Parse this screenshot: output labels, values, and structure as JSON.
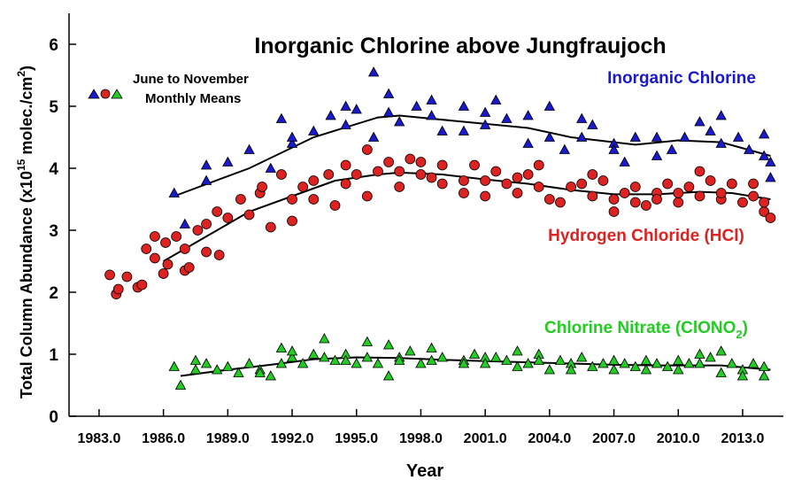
{
  "chart_data": {
    "type": "scatter",
    "title": "Inorganic Chlorine above Jungfraujoch",
    "xlabel": "Year",
    "ylabel_parts": [
      "Total Column Abundance (x10",
      "15",
      " molec./cm",
      "2",
      ")"
    ],
    "annotations": [
      "June to November",
      "Monthly Means"
    ],
    "xlim": [
      1981.6,
      2014.9
    ],
    "ylim": [
      0,
      6.5
    ],
    "xticks": [
      {
        "value": 1983,
        "label": "1983.0"
      },
      {
        "value": 1986,
        "label": "1986.0"
      },
      {
        "value": 1989,
        "label": "1989.0"
      },
      {
        "value": 1992,
        "label": "1992.0"
      },
      {
        "value": 1995,
        "label": "1995.0"
      },
      {
        "value": 1998,
        "label": "1998.0"
      },
      {
        "value": 2001,
        "label": "2001.0"
      },
      {
        "value": 2004,
        "label": "2004.0"
      },
      {
        "value": 2007,
        "label": "2007.0"
      },
      {
        "value": 2010,
        "label": "2010.0"
      },
      {
        "value": 2013,
        "label": "2013.0"
      }
    ],
    "yticks": [
      0,
      1,
      2,
      3,
      4,
      5,
      6
    ],
    "grid": false,
    "series": [
      {
        "name": "Inorganic Chlorine",
        "color": "#1a1acc",
        "marker": "triangle",
        "x": [
          1986.5,
          1987,
          1988,
          1988,
          1989,
          1990,
          1991,
          1991.5,
          1992,
          1992,
          1993,
          1993.8,
          1994.5,
          1994.5,
          1995,
          1995.8,
          1995.8,
          1996.5,
          1996.5,
          1997,
          1997.8,
          1998.5,
          1998.5,
          1999,
          2000,
          2000,
          2001,
          2001,
          2001.5,
          2002,
          2003,
          2003,
          2004,
          2004,
          2004.7,
          2005.5,
          2005.5,
          2006,
          2007,
          2007,
          2007.5,
          2008,
          2009,
          2009,
          2009.7,
          2010.3,
          2011,
          2011.5,
          2012,
          2012,
          2012.8,
          2013.3,
          2014,
          2014,
          2014.3,
          2014.3
        ],
        "values": [
          3.6,
          3.1,
          3.8,
          4.05,
          4.1,
          4.3,
          4.0,
          4.8,
          4.4,
          4.5,
          4.6,
          4.85,
          5.0,
          4.7,
          4.95,
          5.55,
          4.5,
          5.2,
          4.9,
          4.75,
          5.0,
          4.85,
          5.1,
          4.6,
          5.0,
          4.6,
          4.9,
          4.7,
          5.1,
          4.8,
          4.85,
          4.4,
          5.0,
          4.5,
          4.3,
          4.8,
          4.5,
          4.7,
          4.4,
          4.3,
          4.1,
          4.5,
          4.5,
          4.2,
          4.3,
          4.5,
          4.75,
          4.6,
          4.85,
          4.4,
          4.5,
          4.3,
          4.55,
          4.2,
          4.1,
          3.85
        ],
        "trend": {
          "color": "#000000",
          "x": [
            1986.5,
            1990,
            1993,
            1996,
            1997,
            2000,
            2003,
            2005,
            2008,
            2010,
            2012,
            2014.3
          ],
          "values": [
            3.55,
            4.0,
            4.5,
            4.82,
            4.85,
            4.75,
            4.65,
            4.5,
            4.38,
            4.45,
            4.42,
            4.2
          ]
        }
      },
      {
        "name": "Hydrogen Chloride (HCl)",
        "color": "#dd2222",
        "marker": "circle",
        "x": [
          1983.5,
          1983.8,
          1983.9,
          1984.3,
          1984.8,
          1985,
          1985.2,
          1985.6,
          1985.6,
          1986,
          1986.1,
          1986.2,
          1986.6,
          1987,
          1987,
          1987.2,
          1987.6,
          1988,
          1988,
          1988.5,
          1988.6,
          1989,
          1989.6,
          1990,
          1990.5,
          1990.6,
          1991,
          1991.5,
          1992,
          1992,
          1992.5,
          1993,
          1993,
          1993.7,
          1994,
          1994.5,
          1994.5,
          1995,
          1995.5,
          1995.5,
          1996,
          1996.5,
          1997,
          1997,
          1997.5,
          1998,
          1998,
          1998.5,
          1999,
          1999,
          2000,
          2000,
          2000.5,
          2001,
          2001,
          2001.5,
          2002,
          2002.5,
          2002.5,
          2003,
          2003.5,
          2003.5,
          2004,
          2004.5,
          2005,
          2005.5,
          2006,
          2006,
          2006.5,
          2007,
          2007,
          2007.5,
          2008,
          2008,
          2008.5,
          2009,
          2009,
          2009.5,
          2010,
          2010,
          2010.5,
          2011,
          2011,
          2011.5,
          2012,
          2012,
          2012.5,
          2013,
          2013.5,
          2013.5,
          2014,
          2014,
          2014.3
        ],
        "values": [
          2.28,
          1.97,
          2.05,
          2.25,
          2.08,
          2.12,
          2.7,
          2.9,
          2.55,
          2.3,
          2.8,
          2.45,
          2.9,
          2.35,
          2.7,
          2.4,
          3.0,
          3.1,
          2.65,
          3.3,
          2.6,
          3.2,
          3.5,
          3.25,
          3.6,
          3.7,
          3.05,
          3.9,
          3.5,
          3.15,
          3.7,
          3.8,
          3.5,
          3.9,
          3.4,
          4.05,
          3.75,
          3.9,
          4.3,
          3.55,
          3.95,
          4.1,
          3.95,
          3.7,
          4.15,
          4.1,
          3.9,
          3.85,
          4.05,
          3.75,
          3.6,
          3.8,
          4.05,
          3.8,
          3.55,
          3.95,
          3.75,
          3.85,
          3.6,
          3.9,
          4.05,
          3.7,
          3.5,
          3.45,
          3.7,
          3.75,
          3.55,
          3.9,
          3.8,
          3.3,
          3.5,
          3.6,
          3.7,
          3.45,
          3.4,
          3.6,
          3.5,
          3.75,
          3.45,
          3.6,
          3.7,
          3.95,
          3.55,
          3.8,
          3.5,
          3.6,
          3.75,
          3.45,
          3.55,
          3.75,
          3.3,
          3.45,
          3.2
        ],
        "trend": {
          "color": "#000000",
          "x": [
            1986,
            1988,
            1990,
            1992,
            1994,
            1996,
            1997,
            1999,
            2001,
            2003,
            2005,
            2007,
            2009,
            2011,
            2012.5,
            2014.3
          ],
          "values": [
            2.5,
            2.9,
            3.3,
            3.55,
            3.8,
            3.9,
            3.93,
            3.9,
            3.82,
            3.75,
            3.65,
            3.58,
            3.58,
            3.62,
            3.6,
            3.5
          ]
        }
      },
      {
        "name_parts": [
          "Chlorine Nitrate (ClONO",
          "2",
          ")"
        ],
        "color": "#22cc22",
        "marker": "triangle",
        "x": [
          1986.5,
          1986.8,
          1987.5,
          1987.5,
          1988,
          1988.5,
          1989,
          1989.5,
          1990,
          1990.5,
          1990.5,
          1991,
          1991.5,
          1991.5,
          1992,
          1992,
          1992.5,
          1993,
          1993.5,
          1993.5,
          1994,
          1994.5,
          1994.5,
          1995,
          1995.5,
          1995.5,
          1996,
          1996.5,
          1996.5,
          1997,
          1997,
          1997.5,
          1998,
          1998.5,
          1998.5,
          1999,
          2000,
          2000,
          2000.5,
          2001,
          2001,
          2001.5,
          2002,
          2002.5,
          2002.5,
          2003,
          2003.5,
          2003.5,
          2004,
          2004.5,
          2005,
          2005,
          2005.5,
          2006,
          2006.5,
          2007,
          2007,
          2007.5,
          2008,
          2008.5,
          2008.5,
          2009,
          2009.5,
          2010,
          2010,
          2010.5,
          2011,
          2011,
          2011.5,
          2012,
          2012,
          2012.5,
          2013,
          2013,
          2013.5,
          2014,
          2014
        ],
        "values": [
          0.8,
          0.5,
          0.9,
          0.75,
          0.85,
          0.75,
          0.8,
          0.7,
          0.85,
          0.75,
          0.7,
          0.65,
          1.1,
          0.85,
          0.95,
          1.05,
          0.85,
          1.0,
          1.25,
          0.95,
          0.9,
          1.0,
          0.9,
          0.85,
          1.2,
          0.95,
          0.85,
          1.15,
          0.65,
          0.95,
          0.9,
          1.05,
          0.85,
          1.1,
          0.9,
          0.95,
          0.9,
          0.85,
          1.0,
          0.95,
          0.85,
          0.95,
          0.9,
          1.05,
          0.8,
          0.85,
          1.0,
          0.9,
          0.75,
          0.9,
          0.85,
          0.75,
          0.95,
          0.8,
          0.85,
          0.9,
          0.75,
          0.85,
          0.8,
          0.9,
          0.75,
          0.85,
          0.8,
          0.9,
          0.75,
          0.85,
          1.0,
          0.85,
          0.95,
          1.05,
          0.7,
          0.85,
          0.75,
          0.65,
          0.85,
          0.8,
          0.65
        ],
        "trend": {
          "color": "#000000",
          "x": [
            1986.8,
            1989,
            1991,
            1993,
            1995,
            1997,
            1999,
            2001,
            2003,
            2005,
            2007,
            2009,
            2011,
            2012,
            2014.3
          ],
          "values": [
            0.65,
            0.75,
            0.83,
            0.92,
            0.95,
            0.94,
            0.91,
            0.89,
            0.87,
            0.85,
            0.83,
            0.82,
            0.82,
            0.82,
            0.75
          ]
        }
      }
    ]
  }
}
